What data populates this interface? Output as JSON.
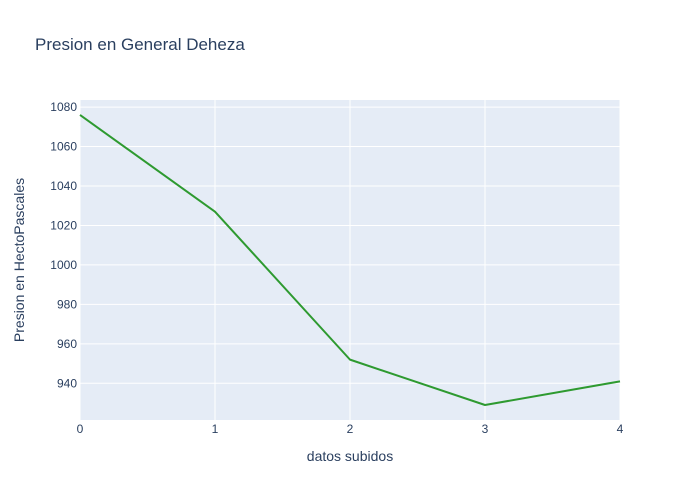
{
  "chart_data": {
    "type": "line",
    "title": "Presion en General Deheza",
    "xlabel": "datos subidos",
    "ylabel": "Presion en HectoPascales",
    "x": [
      0,
      1,
      2,
      3,
      4
    ],
    "series": [
      {
        "values": [
          1076,
          1027,
          952,
          929,
          941
        ],
        "color": "#2e9a30"
      }
    ],
    "xlim": [
      0,
      4
    ],
    "ylim": [
      921.4,
      1083.6
    ],
    "x_ticks": [
      "0",
      "1",
      "2",
      "3",
      "4"
    ],
    "y_ticks": [
      "940",
      "960",
      "980",
      "1000",
      "1020",
      "1040",
      "1060",
      "1080"
    ],
    "grid": true,
    "plot_background": "#e5ecf6",
    "grid_color": "#ffffff",
    "text_color": "#2a3f5f"
  }
}
